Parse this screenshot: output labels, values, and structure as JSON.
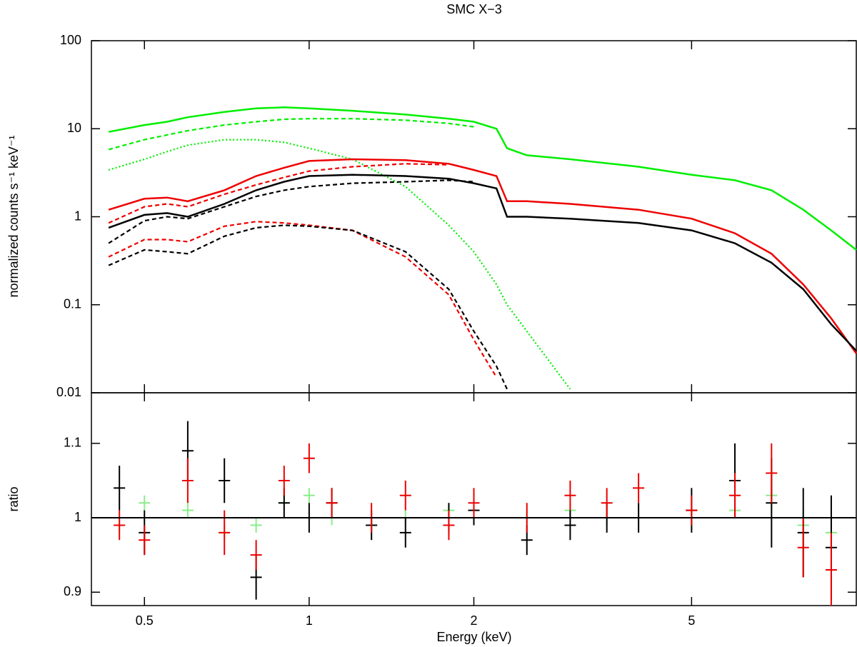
{
  "chart_data": [
    {
      "type": "line",
      "title": "SMC X−3",
      "ylabel": "normalized counts s⁻¹ keV⁻¹",
      "log_x": true,
      "log_y": true,
      "xlim": [
        0.4,
        10
      ],
      "ylim": [
        0.01,
        100
      ],
      "yticks": [
        0.01,
        0.1,
        1,
        10,
        100
      ],
      "x": [
        0.43,
        0.5,
        0.55,
        0.6,
        0.7,
        0.8,
        0.9,
        1,
        1.2,
        1.5,
        1.8,
        2,
        2.2,
        2.3,
        2.5,
        3,
        4,
        5,
        6,
        7,
        8,
        9,
        10
      ],
      "series": [
        {
          "color": "#00ee00",
          "style": "solid",
          "values": [
            9.2,
            11,
            12,
            13.5,
            15.5,
            17,
            17.5,
            17,
            16,
            14.5,
            13,
            12,
            10,
            6,
            5,
            4.5,
            3.7,
            3,
            2.6,
            2,
            1.2,
            0.7,
            0.42
          ]
        },
        {
          "color": "#00ee00",
          "style": "dashed",
          "values": [
            5.8,
            7.5,
            8.5,
            9.5,
            11,
            12,
            12.8,
            13,
            13,
            12.5,
            11.5,
            10.5,
            null,
            null,
            null,
            null,
            null,
            null,
            null,
            null,
            null,
            null,
            null
          ]
        },
        {
          "color": "#00ee00",
          "style": "dotted",
          "values": [
            3.4,
            4.5,
            5.5,
            6.5,
            7.5,
            7.5,
            7,
            6,
            4.5,
            2.2,
            0.8,
            0.4,
            0.17,
            0.1,
            0.05,
            0.011,
            null,
            null,
            null,
            null,
            null,
            null,
            null
          ]
        },
        {
          "color": "#ee0000",
          "style": "solid",
          "values": [
            1.2,
            1.6,
            1.65,
            1.5,
            2.0,
            2.9,
            3.6,
            4.3,
            4.5,
            4.4,
            4.0,
            3.4,
            2.9,
            1.5,
            1.5,
            1.4,
            1.2,
            0.95,
            0.65,
            0.38,
            0.17,
            0.07,
            0.028
          ]
        },
        {
          "color": "#ee0000",
          "style": "dashed",
          "values": [
            0.85,
            1.3,
            1.4,
            1.3,
            1.8,
            2.3,
            2.8,
            3.3,
            3.7,
            4.0,
            3.9,
            null,
            null,
            null,
            null,
            null,
            null,
            null,
            null,
            null,
            null,
            null,
            null
          ]
        },
        {
          "color": "#ee0000",
          "style": "dashed",
          "values": [
            0.35,
            0.55,
            0.55,
            0.52,
            0.78,
            0.88,
            0.85,
            0.8,
            0.7,
            0.35,
            0.13,
            0.04,
            0.015,
            null,
            null,
            null,
            null,
            null,
            null,
            null,
            null,
            null,
            null
          ]
        },
        {
          "color": "#000000",
          "style": "solid",
          "values": [
            0.75,
            1.05,
            1.1,
            1.0,
            1.4,
            2.0,
            2.5,
            2.9,
            3.0,
            2.9,
            2.7,
            2.4,
            2.1,
            1.0,
            1.0,
            0.95,
            0.85,
            0.7,
            0.5,
            0.3,
            0.15,
            0.06,
            0.03
          ]
        },
        {
          "color": "#000000",
          "style": "dashed",
          "values": [
            0.5,
            0.9,
            1.0,
            0.95,
            1.3,
            1.7,
            2.0,
            2.2,
            2.4,
            2.5,
            2.6,
            2.5,
            null,
            null,
            null,
            null,
            null,
            null,
            null,
            null,
            null,
            null,
            null
          ]
        },
        {
          "color": "#000000",
          "style": "dashed",
          "values": [
            0.28,
            0.42,
            0.4,
            0.38,
            0.6,
            0.75,
            0.8,
            0.78,
            0.7,
            0.4,
            0.15,
            0.05,
            0.02,
            0.011,
            null,
            null,
            null,
            null,
            null,
            null,
            null,
            null,
            null
          ]
        }
      ]
    },
    {
      "type": "errorbar",
      "ylabel": "ratio",
      "xlabel": "Energy (keV)",
      "log_x": true,
      "xlim": [
        0.4,
        10
      ],
      "ylim": [
        0.882,
        1.168
      ],
      "xticks": [
        0.5,
        1,
        2,
        5
      ],
      "yticks": [
        0.9,
        1,
        1.1
      ],
      "hline": 1,
      "x": [
        0.45,
        0.5,
        0.6,
        0.7,
        0.8,
        0.9,
        1,
        1.1,
        1.3,
        1.5,
        1.8,
        2,
        2.5,
        3,
        3.5,
        4,
        5,
        6,
        7,
        8,
        9
      ],
      "series": [
        {
          "color": "#88ee88",
          "values": [
            0.99,
            1.02,
            1.01,
            0.98,
            0.99,
            1.02,
            1.03,
            1.0,
            0.99,
            1.0,
            1.01,
            1.0,
            1.0,
            1.01,
            1.0,
            1.0,
            1.0,
            1.01,
            1.03,
            0.99,
            0.98
          ],
          "errors": [
            0.01,
            0.01,
            0.01,
            0.01,
            0.01,
            0.01,
            0.01,
            0.01,
            0.01,
            0.01,
            0.01,
            0.01,
            0.01,
            0.01,
            0.01,
            0.01,
            0.01,
            0.01,
            0.02,
            0.02,
            0.02
          ]
        },
        {
          "color": "#000000",
          "values": [
            1.04,
            0.98,
            1.09,
            1.05,
            0.92,
            1.02,
            1.0,
            1.02,
            0.99,
            0.98,
            1.0,
            1.01,
            0.97,
            0.99,
            1.0,
            1.0,
            1.01,
            1.05,
            1.02,
            0.98,
            0.96
          ],
          "errors": [
            0.03,
            0.03,
            0.04,
            0.03,
            0.03,
            0.02,
            0.02,
            0.02,
            0.02,
            0.02,
            0.02,
            0.02,
            0.02,
            0.02,
            0.02,
            0.02,
            0.03,
            0.05,
            0.06,
            0.06,
            0.07
          ]
        },
        {
          "color": "#ee0000",
          "values": [
            0.99,
            0.97,
            1.05,
            0.98,
            0.95,
            1.05,
            1.08,
            1.02,
            1.0,
            1.03,
            0.99,
            1.02,
            1.0,
            1.03,
            1.02,
            1.04,
            1.01,
            1.03,
            1.06,
            0.96,
            0.93
          ],
          "errors": [
            0.02,
            0.02,
            0.03,
            0.03,
            0.02,
            0.02,
            0.02,
            0.02,
            0.02,
            0.02,
            0.02,
            0.02,
            0.02,
            0.02,
            0.02,
            0.02,
            0.02,
            0.03,
            0.04,
            0.04,
            0.05
          ]
        }
      ]
    }
  ]
}
